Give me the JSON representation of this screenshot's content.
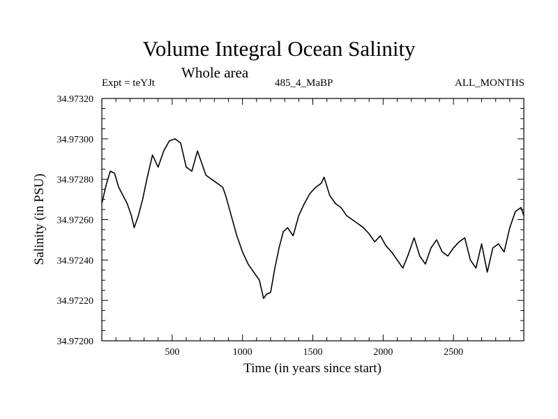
{
  "page": {
    "title": "Volume Integral Ocean Salinity",
    "subtitle": "Whole area",
    "expt_label": "Expt = teYJt",
    "run_label": "485_4_MaBP",
    "months_label": "ALL_MONTHS"
  },
  "chart_data": {
    "type": "line",
    "title": "Volume Integral Ocean Salinity",
    "subtitle": "Whole area",
    "xlabel": "Time (in years since start)",
    "ylabel": "Salinity (in PSU)",
    "xlim": [
      0,
      3000
    ],
    "ylim": [
      34.972,
      34.9732
    ],
    "x_ticks": [
      500,
      1000,
      1500,
      2000,
      2500
    ],
    "x_tick_labels": [
      "500",
      "1000",
      "1500",
      "2000",
      "2500"
    ],
    "y_ticks": [
      34.972,
      34.9722,
      34.9724,
      34.9726,
      34.9728,
      34.973,
      34.9732
    ],
    "y_tick_labels": [
      "34.97200",
      "34.97220",
      "34.97240",
      "34.97260",
      "34.97280",
      "34.97300",
      "34.97320"
    ],
    "grid": false,
    "series": [
      {
        "name": "Salinity",
        "color": "#000000",
        "x": [
          0,
          30,
          60,
          90,
          120,
          150,
          180,
          210,
          230,
          260,
          290,
          320,
          360,
          400,
          440,
          480,
          520,
          560,
          600,
          640,
          680,
          700,
          740,
          780,
          820,
          860,
          880,
          920,
          960,
          1000,
          1040,
          1080,
          1120,
          1150,
          1170,
          1200,
          1230,
          1260,
          1290,
          1320,
          1360,
          1400,
          1440,
          1480,
          1520,
          1560,
          1580,
          1620,
          1660,
          1700,
          1740,
          1780,
          1820,
          1860,
          1900,
          1940,
          1980,
          2020,
          2060,
          2100,
          2140,
          2180,
          2220,
          2260,
          2300,
          2340,
          2380,
          2420,
          2460,
          2500,
          2540,
          2580,
          2620,
          2660,
          2700,
          2740,
          2780,
          2820,
          2860,
          2900,
          2940,
          2980,
          3000
        ],
        "y": [
          34.97268,
          34.97277,
          34.97284,
          34.97283,
          34.97276,
          34.97272,
          34.97268,
          34.97262,
          34.97256,
          34.97262,
          34.9727,
          34.9728,
          34.97292,
          34.97286,
          34.97294,
          34.97299,
          34.973,
          34.97298,
          34.97286,
          34.97284,
          34.97294,
          34.9729,
          34.97282,
          34.9728,
          34.97278,
          34.97276,
          34.97272,
          34.97262,
          34.97252,
          34.97244,
          34.97238,
          34.97234,
          34.9723,
          34.97221,
          34.97223,
          34.97224,
          34.97236,
          34.97246,
          34.97254,
          34.97256,
          34.97252,
          34.97262,
          34.97268,
          34.97273,
          34.97276,
          34.97278,
          34.97281,
          34.97272,
          34.97268,
          34.97266,
          34.97262,
          34.9726,
          34.97258,
          34.97256,
          34.97253,
          34.97249,
          34.97252,
          34.97247,
          34.97244,
          34.9724,
          34.97236,
          34.97243,
          34.97251,
          34.97242,
          34.97238,
          34.97246,
          34.9725,
          34.97244,
          34.97242,
          34.97246,
          34.97249,
          34.97251,
          34.9724,
          34.97236,
          34.97248,
          34.97234,
          34.97246,
          34.97248,
          34.97244,
          34.97256,
          34.97264,
          34.97266,
          34.97262
        ]
      }
    ]
  }
}
